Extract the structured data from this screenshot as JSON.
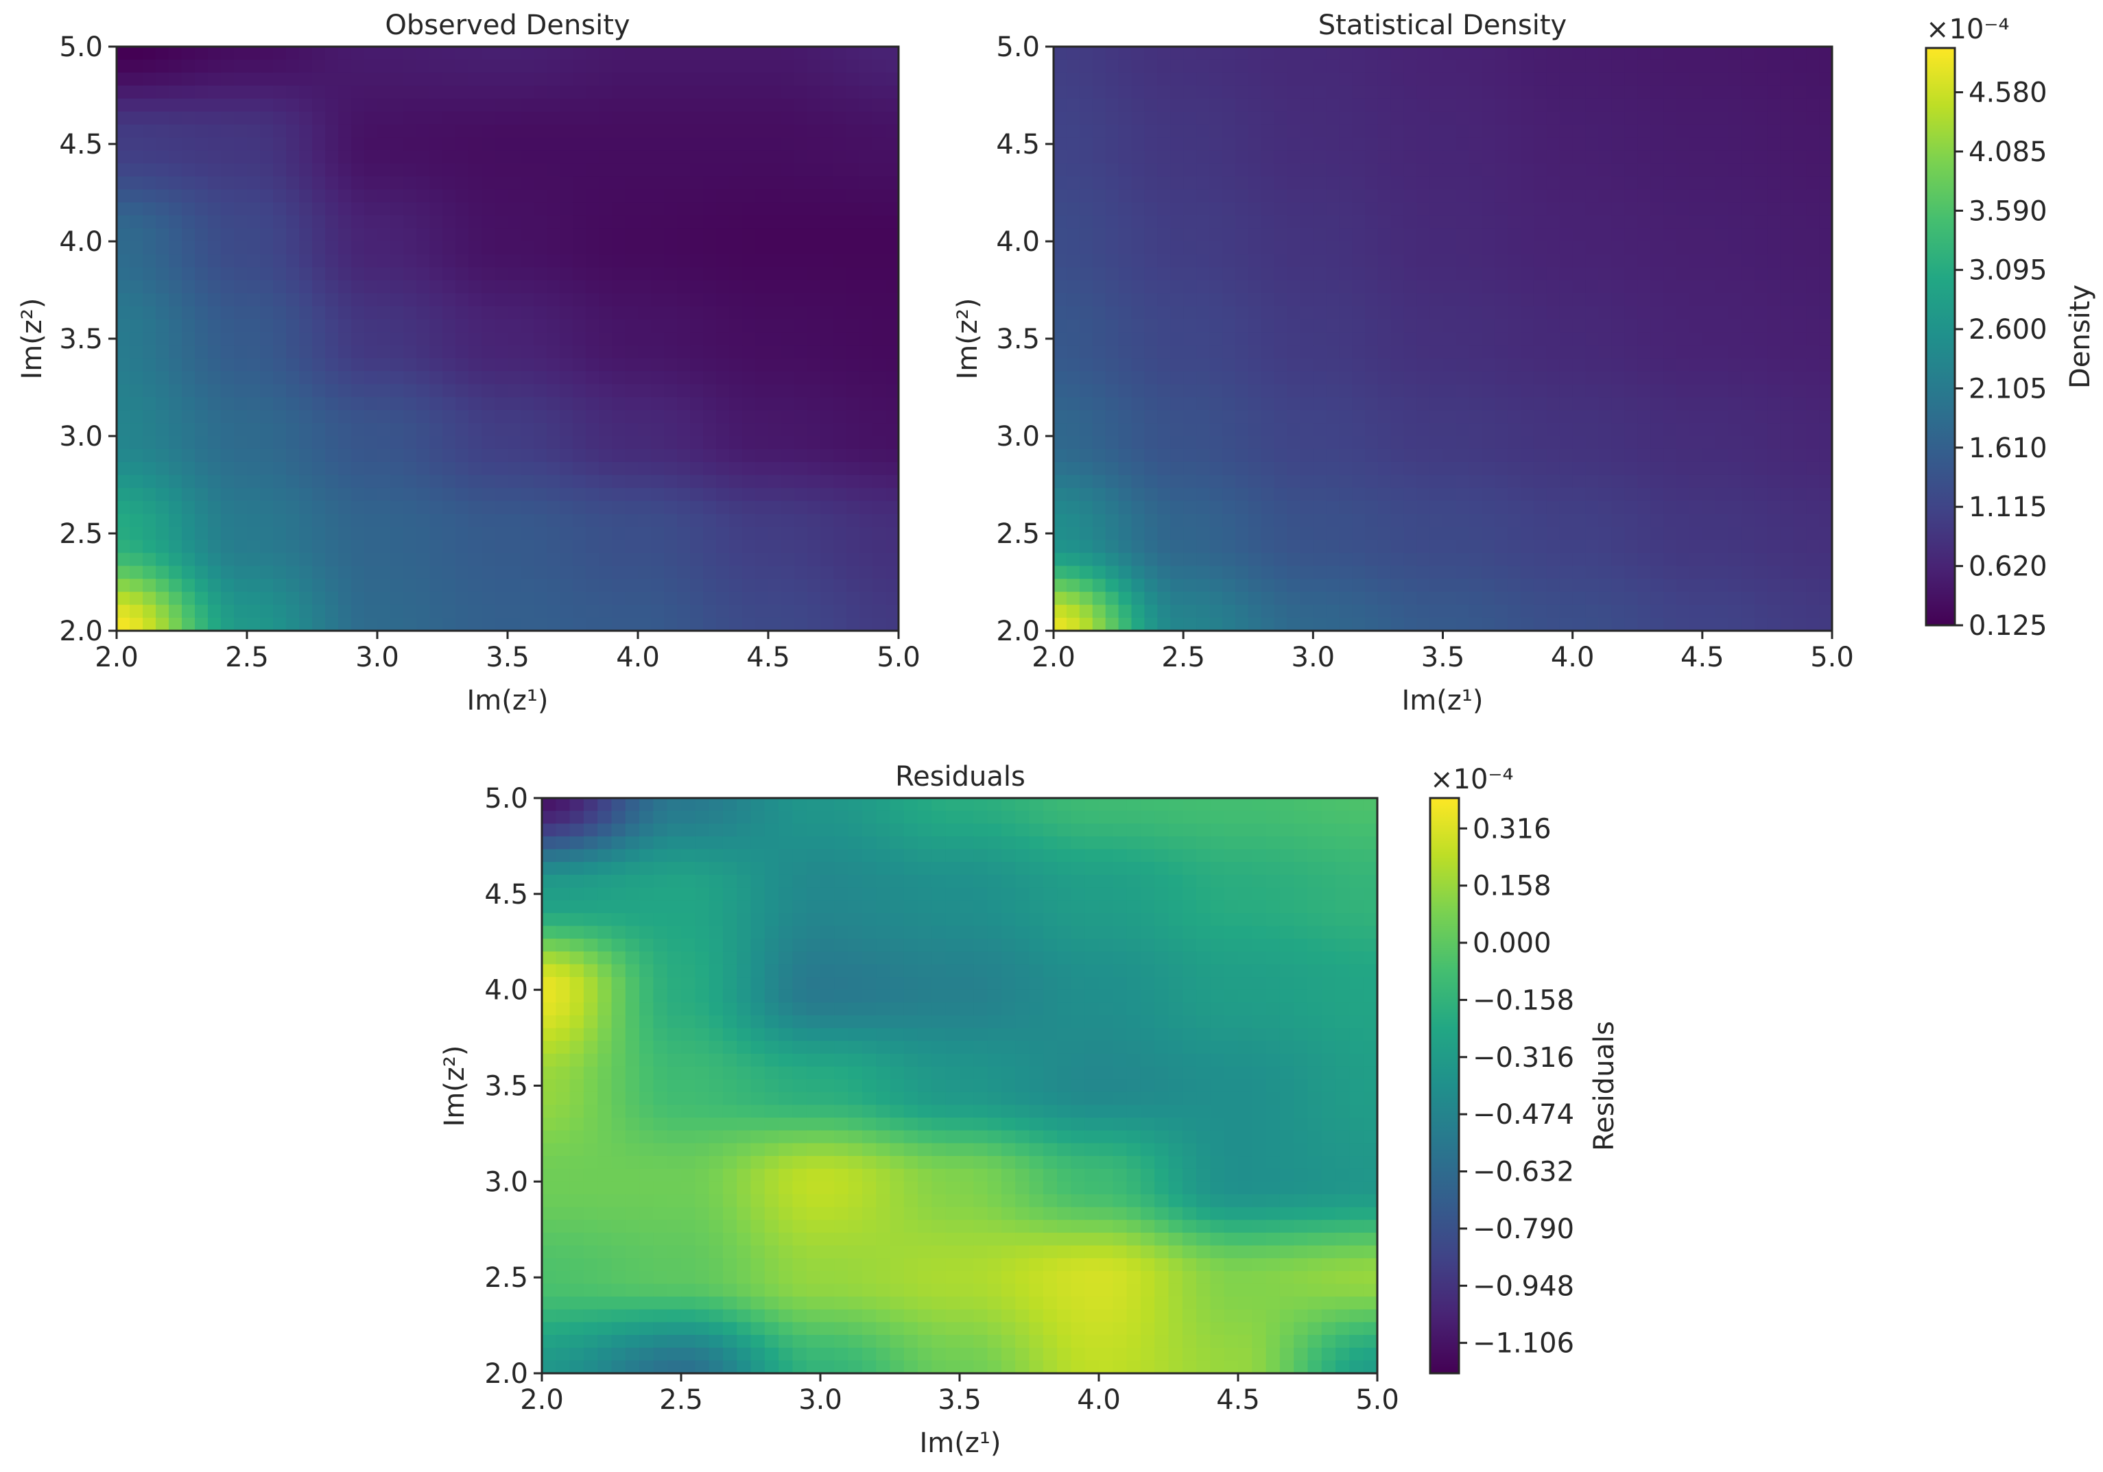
{
  "chart_data": [
    {
      "type": "heatmap",
      "title": "Observed Density",
      "xlabel": "Im(z¹)",
      "ylabel": "Im(z²)",
      "xlim": [
        2.0,
        5.0
      ],
      "ylim": [
        2.0,
        5.0
      ],
      "xticks": [
        "2.0",
        "2.5",
        "3.0",
        "3.5",
        "4.0",
        "4.5",
        "5.0"
      ],
      "yticks": [
        "2.0",
        "2.5",
        "3.0",
        "3.5",
        "4.0",
        "4.5",
        "5.0"
      ],
      "colormap": "viridis",
      "colorbar_ref": "density",
      "field": {
        "x": [
          2.0,
          2.5,
          3.0,
          3.5,
          4.0,
          4.5,
          5.0
        ],
        "y": [
          5.0,
          4.5,
          4.0,
          3.5,
          3.0,
          2.5,
          2.0
        ],
        "values": [
          [
            0.1,
            0.3,
            0.5,
            0.55,
            0.45,
            0.45,
            0.6
          ],
          [
            1.0,
            0.9,
            0.35,
            0.3,
            0.3,
            0.3,
            0.35
          ],
          [
            1.8,
            1.2,
            0.6,
            0.35,
            0.25,
            0.2,
            0.2
          ],
          [
            2.1,
            1.5,
            0.9,
            0.6,
            0.4,
            0.3,
            0.25
          ],
          [
            2.3,
            1.8,
            1.4,
            1.0,
            0.7,
            0.45,
            0.35
          ],
          [
            3.1,
            2.1,
            1.7,
            1.5,
            1.3,
            1.0,
            0.8
          ],
          [
            4.9,
            2.7,
            1.8,
            1.6,
            1.5,
            1.2,
            0.95
          ]
        ]
      }
    },
    {
      "type": "heatmap",
      "title": "Statistical Density",
      "xlabel": "Im(z¹)",
      "ylabel": "Im(z²)",
      "xlim": [
        2.0,
        5.0
      ],
      "ylim": [
        2.0,
        5.0
      ],
      "xticks": [
        "2.0",
        "2.5",
        "3.0",
        "3.5",
        "4.0",
        "4.5",
        "5.0"
      ],
      "yticks": [
        "2.0",
        "2.5",
        "3.0",
        "3.5",
        "4.0",
        "4.5",
        "5.0"
      ],
      "colormap": "viridis",
      "colorbar_ref": "density",
      "field": {
        "x": [
          2.0,
          2.5,
          3.0,
          3.5,
          4.0,
          4.5,
          5.0
        ],
        "y": [
          5.0,
          4.5,
          4.0,
          3.5,
          3.0,
          2.5,
          2.0
        ],
        "values": [
          [
            1.0,
            0.8,
            0.7,
            0.6,
            0.5,
            0.45,
            0.4
          ],
          [
            1.1,
            0.9,
            0.75,
            0.65,
            0.55,
            0.5,
            0.45
          ],
          [
            1.25,
            1.0,
            0.85,
            0.7,
            0.6,
            0.55,
            0.5
          ],
          [
            1.45,
            1.15,
            0.95,
            0.8,
            0.7,
            0.6,
            0.55
          ],
          [
            1.75,
            1.35,
            1.1,
            0.95,
            0.85,
            0.75,
            0.65
          ],
          [
            2.5,
            1.7,
            1.35,
            1.2,
            1.05,
            0.9,
            0.8
          ],
          [
            4.8,
            2.3,
            1.75,
            1.5,
            1.3,
            1.1,
            0.95
          ]
        ]
      }
    },
    {
      "type": "heatmap",
      "title": "Residuals",
      "xlabel": "Im(z¹)",
      "ylabel": "Im(z²)",
      "xlim": [
        2.0,
        5.0
      ],
      "ylim": [
        2.0,
        5.0
      ],
      "xticks": [
        "2.0",
        "2.5",
        "3.0",
        "3.5",
        "4.0",
        "4.5",
        "5.0"
      ],
      "yticks": [
        "2.0",
        "2.5",
        "3.0",
        "3.5",
        "4.0",
        "4.5",
        "5.0"
      ],
      "colormap": "viridis",
      "colorbar_ref": "residuals",
      "field": {
        "x": [
          2.0,
          2.5,
          3.0,
          3.5,
          4.0,
          4.5,
          5.0
        ],
        "y": [
          5.0,
          4.5,
          4.0,
          3.5,
          3.0,
          2.5,
          2.0
        ],
        "values": [
          [
            -1.1,
            -0.55,
            -0.35,
            -0.2,
            -0.1,
            -0.08,
            -0.05
          ],
          [
            -0.3,
            -0.25,
            -0.45,
            -0.4,
            -0.3,
            -0.2,
            -0.15
          ],
          [
            0.35,
            -0.2,
            -0.55,
            -0.5,
            -0.4,
            -0.3,
            -0.25
          ],
          [
            0.15,
            -0.1,
            -0.2,
            -0.35,
            -0.45,
            -0.4,
            -0.3
          ],
          [
            0.05,
            0.05,
            0.25,
            0.1,
            -0.1,
            -0.4,
            -0.35
          ],
          [
            -0.05,
            0.0,
            0.15,
            0.2,
            0.3,
            0.1,
            0.15
          ],
          [
            -0.35,
            -0.6,
            -0.15,
            0.05,
            0.25,
            0.15,
            -0.3
          ]
        ]
      }
    }
  ],
  "colorbars": {
    "density": {
      "label": "Density",
      "multiplier": "×10⁻⁴",
      "min": 0.125,
      "max": 4.95,
      "ticks": [
        "4.580",
        "4.085",
        "3.590",
        "3.095",
        "2.600",
        "2.105",
        "1.610",
        "1.115",
        "0.620",
        "0.125"
      ]
    },
    "residuals": {
      "label": "Residuals",
      "multiplier": "×10⁻⁴",
      "min": -1.19,
      "max": 0.4,
      "ticks": [
        "0.316",
        "0.158",
        "0.000",
        "−0.158",
        "−0.316",
        "−0.474",
        "−0.632",
        "−0.790",
        "−0.948",
        "−1.106"
      ]
    }
  }
}
